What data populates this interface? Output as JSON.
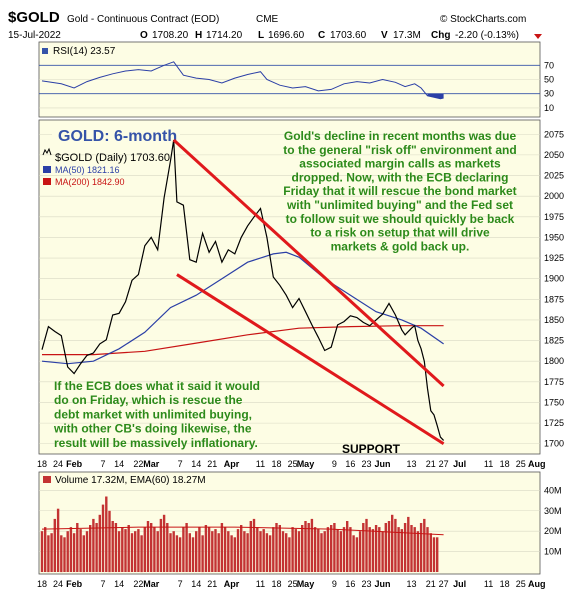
{
  "header": {
    "symbol": "$GOLD",
    "description": "Gold - Continuous Contract (EOD)",
    "exchange": "CME",
    "watermark": "© StockCharts.com",
    "date": "15-Jul-2022",
    "quote": {
      "open_label": "O",
      "open": "1708.20",
      "high_label": "H",
      "high": "1714.20",
      "low_label": "L",
      "low": "1696.60",
      "close_label": "C",
      "close": "1703.60",
      "volume_label": "V",
      "volume": "17.3M",
      "change_label": "Chg",
      "change": "-2.20 (-0.13%)"
    }
  },
  "rsi_panel": {
    "legend": "RSI(14) 23.57",
    "yticks": [
      "70",
      "50",
      "30",
      "10"
    ]
  },
  "price_panel": {
    "title_box": "GOLD: 6-month",
    "legend_price": "$GOLD (Daily) 1703.60",
    "legend_ma50": "MA(50) 1821.16",
    "legend_ma200": "MA(200) 1842.90",
    "annotation_top": [
      "Gold's decline in recent months was due",
      "to the general \"risk off\" environment and",
      "associated margin calls as markets",
      "dropped. Now, with the ECB declaring",
      "Friday that it will rescue the bond market",
      "with \"unlimited buying\" and the Fed set",
      "to follow suit we should quickly be back",
      "to a risk on setup that will drive",
      "markets & gold back up."
    ],
    "annotation_bottom": [
      "If the ECB does what it said it would",
      "do on Friday, which is rescue the",
      "debt market with unlimited buying,",
      "with other CB's doing likewise, the",
      "result will be massively inflationary."
    ],
    "support_label": "SUPPORT",
    "yticks": [
      "2075",
      "2050",
      "2025",
      "2000",
      "1975",
      "1950",
      "1925",
      "1900",
      "1875",
      "1850",
      "1825",
      "1800",
      "1775",
      "1750",
      "1725",
      "1700"
    ]
  },
  "volume_panel": {
    "legend": "Volume 17.32M, EMA(60) 18.27M",
    "yticks": [
      "40M",
      "30M",
      "20M",
      "10M"
    ]
  },
  "xaxis": {
    "labels": [
      {
        "t": "18",
        "x": 0
      },
      {
        "t": "24",
        "x": 5
      },
      {
        "t": "Feb",
        "x": 10
      },
      {
        "t": "7",
        "x": 19
      },
      {
        "t": "14",
        "x": 24
      },
      {
        "t": "22",
        "x": 30
      },
      {
        "t": "Mar",
        "x": 34
      },
      {
        "t": "7",
        "x": 43
      },
      {
        "t": "14",
        "x": 48
      },
      {
        "t": "21",
        "x": 53
      },
      {
        "t": "Apr",
        "x": 59
      },
      {
        "t": "11",
        "x": 68
      },
      {
        "t": "18",
        "x": 73
      },
      {
        "t": "25",
        "x": 78
      },
      {
        "t": "May",
        "x": 82
      },
      {
        "t": "9",
        "x": 91
      },
      {
        "t": "16",
        "x": 96
      },
      {
        "t": "23",
        "x": 101
      },
      {
        "t": "Jun",
        "x": 106
      },
      {
        "t": "13",
        "x": 115
      },
      {
        "t": "21",
        "x": 121
      },
      {
        "t": "27",
        "x": 125
      },
      {
        "t": "Jul",
        "x": 130
      },
      {
        "t": "11",
        "x": 139
      },
      {
        "t": "18",
        "x": 144
      },
      {
        "t": "25",
        "x": 149
      },
      {
        "t": "Aug",
        "x": 154
      }
    ]
  },
  "chart_data": {
    "type": "line",
    "x_unit": "trading-day index (0 = Jan 18 2022, 125 = Jul 15 2022)",
    "close": [
      [
        0,
        1814
      ],
      [
        2,
        1842
      ],
      [
        4,
        1836
      ],
      [
        6,
        1831
      ],
      [
        8,
        1793
      ],
      [
        10,
        1785
      ],
      [
        12,
        1797
      ],
      [
        14,
        1807
      ],
      [
        16,
        1810
      ],
      [
        18,
        1821
      ],
      [
        20,
        1826
      ],
      [
        22,
        1856
      ],
      [
        24,
        1858
      ],
      [
        26,
        1872
      ],
      [
        28,
        1898
      ],
      [
        30,
        1905
      ],
      [
        32,
        1940
      ],
      [
        34,
        1950
      ],
      [
        36,
        1935
      ],
      [
        38,
        1998
      ],
      [
        40,
        2043
      ],
      [
        41,
        2068
      ],
      [
        42,
        1993
      ],
      [
        44,
        1989
      ],
      [
        46,
        1923
      ],
      [
        48,
        1920
      ],
      [
        50,
        1955
      ],
      [
        52,
        1932
      ],
      [
        54,
        1945
      ],
      [
        56,
        1920
      ],
      [
        58,
        1935
      ],
      [
        60,
        1930
      ],
      [
        62,
        1950
      ],
      [
        64,
        1964
      ],
      [
        66,
        1975
      ],
      [
        68,
        1985
      ],
      [
        70,
        1950
      ],
      [
        72,
        1902
      ],
      [
        74,
        1892
      ],
      [
        76,
        1880
      ],
      [
        78,
        1865
      ],
      [
        80,
        1876
      ],
      [
        82,
        1860
      ],
      [
        84,
        1844
      ],
      [
        86,
        1829
      ],
      [
        88,
        1813
      ],
      [
        90,
        1817
      ],
      [
        92,
        1844
      ],
      [
        94,
        1848
      ],
      [
        96,
        1855
      ],
      [
        98,
        1853
      ],
      [
        100,
        1847
      ],
      [
        102,
        1843
      ],
      [
        104,
        1850
      ],
      [
        106,
        1857
      ],
      [
        108,
        1870
      ],
      [
        110,
        1856
      ],
      [
        112,
        1838
      ],
      [
        113,
        1832
      ],
      [
        115,
        1840
      ],
      [
        116,
        1843
      ],
      [
        117,
        1825
      ],
      [
        118,
        1815
      ],
      [
        119,
        1800
      ],
      [
        120,
        1767
      ],
      [
        121,
        1740
      ],
      [
        122,
        1735
      ],
      [
        123,
        1722
      ],
      [
        124,
        1708
      ],
      [
        125,
        1704
      ]
    ],
    "ma50": [
      [
        0,
        1800
      ],
      [
        8,
        1797
      ],
      [
        16,
        1800
      ],
      [
        24,
        1815
      ],
      [
        32,
        1835
      ],
      [
        40,
        1865
      ],
      [
        48,
        1880
      ],
      [
        56,
        1900
      ],
      [
        64,
        1920
      ],
      [
        72,
        1930
      ],
      [
        76,
        1932
      ],
      [
        80,
        1926
      ],
      [
        88,
        1900
      ],
      [
        96,
        1880
      ],
      [
        104,
        1860
      ],
      [
        112,
        1850
      ],
      [
        118,
        1840
      ],
      [
        125,
        1821
      ]
    ],
    "ma200": [
      [
        0,
        1808
      ],
      [
        16,
        1808
      ],
      [
        32,
        1812
      ],
      [
        48,
        1822
      ],
      [
        64,
        1832
      ],
      [
        80,
        1840
      ],
      [
        96,
        1842
      ],
      [
        112,
        1843
      ],
      [
        125,
        1843
      ]
    ],
    "rsi": [
      [
        0,
        48
      ],
      [
        6,
        44
      ],
      [
        10,
        38
      ],
      [
        14,
        47
      ],
      [
        18,
        53
      ],
      [
        22,
        58
      ],
      [
        26,
        62
      ],
      [
        30,
        64
      ],
      [
        34,
        62
      ],
      [
        38,
        70
      ],
      [
        41,
        75
      ],
      [
        44,
        56
      ],
      [
        48,
        52
      ],
      [
        52,
        50
      ],
      [
        56,
        45
      ],
      [
        60,
        52
      ],
      [
        64,
        57
      ],
      [
        68,
        61
      ],
      [
        70,
        50
      ],
      [
        74,
        42
      ],
      [
        78,
        38
      ],
      [
        82,
        40
      ],
      [
        86,
        34
      ],
      [
        90,
        36
      ],
      [
        94,
        44
      ],
      [
        98,
        47
      ],
      [
        102,
        45
      ],
      [
        106,
        50
      ],
      [
        110,
        46
      ],
      [
        113,
        40
      ],
      [
        116,
        44
      ],
      [
        118,
        38
      ],
      [
        120,
        27
      ],
      [
        122,
        25
      ],
      [
        124,
        23
      ],
      [
        125,
        24
      ]
    ],
    "volume_millions": [
      20,
      22,
      18,
      19,
      26,
      31,
      18,
      17,
      20,
      22,
      19,
      24,
      21,
      18,
      20,
      23,
      26,
      24,
      28,
      33,
      37,
      30,
      25,
      24,
      20,
      22,
      21,
      23,
      19,
      20,
      21,
      18,
      22,
      25,
      24,
      22,
      20,
      26,
      28,
      24,
      19,
      20,
      18,
      17,
      22,
      24,
      19,
      17,
      20,
      22,
      18,
      23,
      22,
      20,
      21,
      19,
      24,
      22,
      20,
      18,
      17,
      21,
      23,
      20,
      19,
      25,
      26,
      22,
      20,
      21,
      19,
      18,
      22,
      24,
      23,
      20,
      19,
      17,
      22,
      21,
      20,
      23,
      25,
      24,
      26,
      22,
      21,
      19,
      20,
      22,
      23,
      24,
      21,
      20,
      22,
      25,
      22,
      18,
      17,
      20,
      24,
      26,
      22,
      21,
      23,
      22,
      20,
      24,
      25,
      28,
      26,
      22,
      21,
      24,
      27,
      23,
      22,
      20,
      24,
      26,
      22,
      19,
      17,
      17
    ],
    "volume_ema60_millions": [
      [
        0,
        21
      ],
      [
        30,
        22
      ],
      [
        60,
        22
      ],
      [
        90,
        21
      ],
      [
        125,
        18.27
      ]
    ],
    "trendlines": [
      {
        "name": "upper",
        "points": [
          [
            41,
            2068
          ],
          [
            125,
            1770
          ]
        ]
      },
      {
        "name": "lower",
        "points": [
          [
            42,
            1905
          ],
          [
            125,
            1700
          ]
        ]
      }
    ],
    "ylim_price": [
      1690,
      2085
    ],
    "ylim_rsi": [
      0,
      100
    ],
    "ylim_volume_millions": [
      0,
      48
    ],
    "xlim": [
      0,
      155
    ],
    "colors": {
      "price": "#000000",
      "ma50": "#2b3fa6",
      "ma200": "#c81414",
      "trend": "#e0191c",
      "rsi": "#2b3fa6",
      "volume": "#c33333",
      "panel_bg": "#fdfde4",
      "annotation": "#2c8a1a",
      "title_box": "#3553a8"
    }
  }
}
